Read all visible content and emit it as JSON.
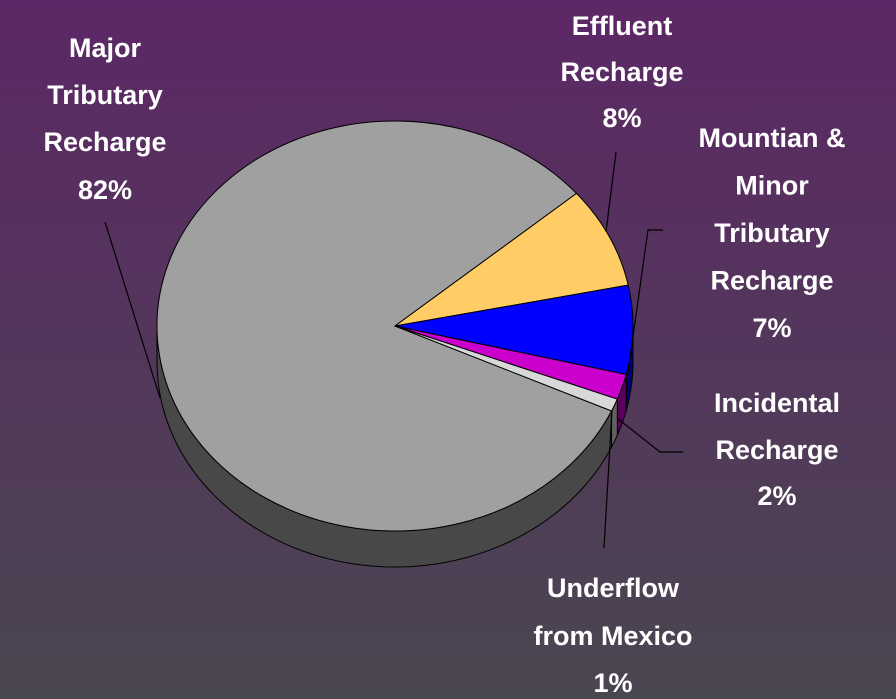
{
  "chart_data": {
    "type": "pie",
    "categories": [
      "Major\nTributary\nRecharge",
      "Effluent\nRecharge",
      "Mountian &\nMinor\nTributary\nRecharge",
      "Incidental\nRecharge",
      "Underflow\nfrom Mexico"
    ],
    "values": [
      82,
      8,
      7,
      2,
      1
    ],
    "value_labels": [
      "82%",
      "8%",
      "7%",
      "2%",
      "1%"
    ],
    "colors": [
      "#a0a0a0",
      "#ffcc66",
      "#0000ff",
      "#cc00cc",
      "#d8d8d8"
    ]
  }
}
